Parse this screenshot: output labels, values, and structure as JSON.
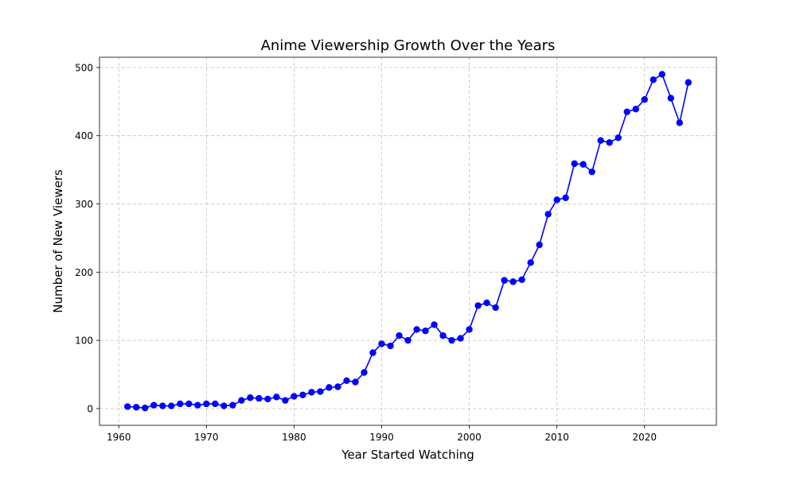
{
  "chart_data": {
    "type": "line",
    "title": "Anime Viewership Growth Over the Years",
    "xlabel": "Year Started Watching",
    "ylabel": "Number of New Viewers",
    "xlim": [
      1957.8,
      2028.2
    ],
    "ylim": [
      -24.5,
      515
    ],
    "xticks": [
      1960,
      1970,
      1980,
      1990,
      2000,
      2010,
      2020
    ],
    "yticks": [
      0,
      100,
      200,
      300,
      400,
      500
    ],
    "grid": true,
    "line_color": "#0000ff",
    "marker": "circle",
    "x": [
      1961,
      1962,
      1963,
      1964,
      1965,
      1966,
      1967,
      1968,
      1969,
      1970,
      1971,
      1972,
      1973,
      1974,
      1975,
      1976,
      1977,
      1978,
      1979,
      1980,
      1981,
      1982,
      1983,
      1984,
      1985,
      1986,
      1987,
      1988,
      1989,
      1990,
      1991,
      1992,
      1993,
      1994,
      1995,
      1996,
      1997,
      1998,
      1999,
      2000,
      2001,
      2002,
      2003,
      2004,
      2005,
      2006,
      2007,
      2008,
      2009,
      2010,
      2011,
      2012,
      2013,
      2014,
      2015,
      2016,
      2017,
      2018,
      2019,
      2020,
      2021,
      2022,
      2023,
      2024,
      2025
    ],
    "y": [
      3,
      2,
      1,
      5,
      4,
      4,
      7,
      7,
      5,
      7,
      7,
      4,
      5,
      12,
      16,
      15,
      14,
      17,
      12,
      18,
      20,
      24,
      25,
      31,
      32,
      41,
      39,
      53,
      82,
      95,
      92,
      107,
      100,
      116,
      114,
      123,
      107,
      100,
      103,
      116,
      151,
      155,
      148,
      188,
      186,
      189,
      214,
      240,
      285,
      306,
      309,
      359,
      358,
      347,
      393,
      390,
      397,
      435,
      439,
      453,
      482,
      490,
      455,
      419,
      478
    ]
  }
}
